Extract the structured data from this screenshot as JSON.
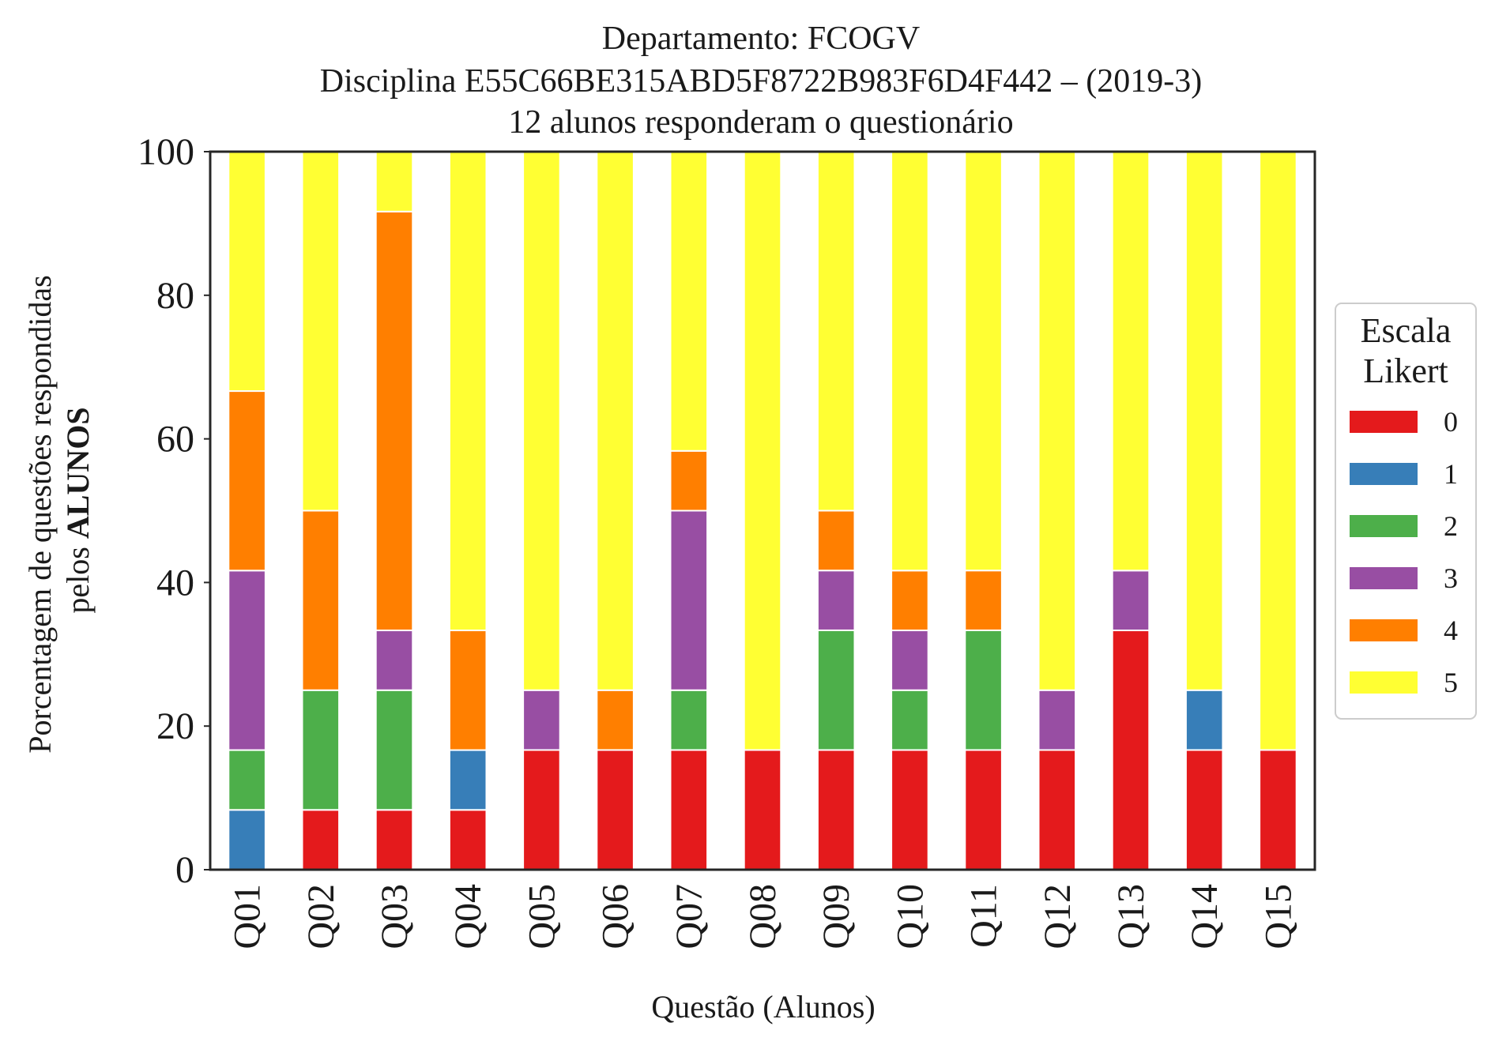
{
  "chart_data": {
    "type": "bar",
    "stacked": true,
    "title_lines": [
      "Departamento: FCOGV",
      "Disciplina E55C66BE315ABD5F8722B983F6D4F442 – (2019-3)",
      "12 alunos responderam o questionário"
    ],
    "xlabel": "Questão (Alunos)",
    "ylabel_line1": "Porcentagem de questões respondidas",
    "ylabel_line2_prefix": "pelos ",
    "ylabel_line2_bold": "ALUNOS",
    "ylim": [
      0,
      100
    ],
    "yticks": [
      "0",
      "20",
      "40",
      "60",
      "80",
      "100"
    ],
    "categories": [
      "Q01",
      "Q02",
      "Q03",
      "Q04",
      "Q05",
      "Q06",
      "Q07",
      "Q08",
      "Q09",
      "Q10",
      "Q11",
      "Q12",
      "Q13",
      "Q14",
      "Q15"
    ],
    "legend_title_lines": [
      "Escala",
      "Likert"
    ],
    "legend_position": "center-right",
    "grid": false,
    "series": [
      {
        "name": "0",
        "color": "#e41a1c",
        "values": [
          0,
          8.33,
          8.33,
          8.33,
          16.67,
          16.67,
          16.67,
          16.67,
          16.67,
          16.67,
          16.67,
          16.67,
          33.33,
          16.67,
          16.67
        ]
      },
      {
        "name": "1",
        "color": "#377eb8",
        "values": [
          8.33,
          0,
          0,
          8.33,
          0,
          0,
          0,
          0,
          0,
          0,
          0,
          0,
          0,
          8.33,
          0
        ]
      },
      {
        "name": "2",
        "color": "#4daf4a",
        "values": [
          8.33,
          16.67,
          16.67,
          0,
          0,
          0,
          8.33,
          0,
          16.67,
          8.33,
          16.67,
          0,
          0,
          0,
          0
        ]
      },
      {
        "name": "3",
        "color": "#984ea3",
        "values": [
          25.0,
          0,
          8.33,
          0,
          8.33,
          0,
          25.0,
          0,
          8.33,
          8.33,
          0,
          8.33,
          8.33,
          0,
          0
        ]
      },
      {
        "name": "4",
        "color": "#ff7f00",
        "values": [
          25.0,
          25.0,
          58.33,
          16.67,
          0,
          8.33,
          8.33,
          0,
          8.33,
          8.33,
          8.33,
          0,
          0,
          0,
          0
        ]
      },
      {
        "name": "5",
        "color": "#ffff33",
        "values": [
          33.33,
          50.0,
          8.33,
          66.67,
          75.0,
          75.0,
          41.67,
          83.33,
          50.0,
          58.33,
          58.33,
          75.0,
          58.33,
          75.0,
          83.33
        ]
      }
    ]
  }
}
